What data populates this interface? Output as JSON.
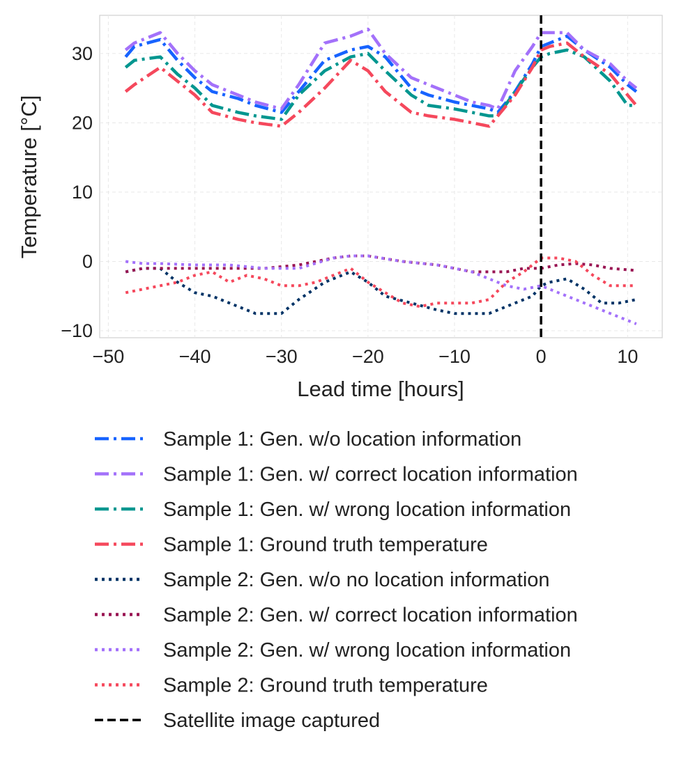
{
  "chart_data": {
    "type": "line",
    "xlabel": "Lead time [hours]",
    "ylabel": "Temperature [°C]",
    "xlim": [
      -51,
      14
    ],
    "ylim": [
      -11,
      35.5
    ],
    "xticks": [
      -50,
      -40,
      -30,
      -20,
      -10,
      0,
      10
    ],
    "xtick_labels": [
      "−50",
      "−40",
      "−30",
      "−20",
      "−10",
      "0",
      "10"
    ],
    "yticks": [
      -10,
      0,
      10,
      20,
      30
    ],
    "ytick_labels": [
      "−10",
      "0",
      "10",
      "20",
      "30"
    ],
    "grid": true,
    "legend_position": "below",
    "series": [
      {
        "name": "Sample 1: Gen. w/o location information",
        "color": "#1763ff",
        "style": "dashdot",
        "x": [
          -48,
          -47,
          -44,
          -42,
          -40,
          -38,
          -35,
          -33,
          -30,
          -28,
          -25,
          -22,
          -20,
          -18,
          -15,
          -13,
          -10,
          -8,
          -6,
          -5,
          -3,
          -1,
          0,
          1,
          3,
          5,
          8,
          10,
          11
        ],
        "y": [
          29.5,
          31,
          32,
          29,
          26.5,
          24.5,
          23.5,
          22.5,
          21.5,
          24.5,
          29,
          30.5,
          31,
          29.5,
          25,
          24,
          23,
          22.5,
          22,
          21.5,
          24.5,
          28.5,
          31,
          31.5,
          32.5,
          30.5,
          28,
          25.5,
          24.5
        ]
      },
      {
        "name": "Sample 1: Gen. w/ correct location information",
        "color": "#a371fa",
        "style": "dashdot",
        "x": [
          -48,
          -47,
          -44,
          -42,
          -40,
          -38,
          -35,
          -33,
          -30,
          -28,
          -25,
          -22,
          -20,
          -18,
          -15,
          -13,
          -10,
          -8,
          -6,
          -5,
          -3,
          -1,
          0,
          1,
          3,
          5,
          8,
          10,
          11
        ],
        "y": [
          30.5,
          31.5,
          33,
          30,
          27.5,
          25.5,
          24,
          23,
          22,
          25.5,
          31.5,
          32.5,
          33.5,
          30,
          26.5,
          25.5,
          24,
          23,
          22.5,
          22,
          27.5,
          31,
          33,
          33,
          33,
          30.5,
          28.5,
          26,
          25
        ]
      },
      {
        "name": "Sample 1: Gen. w/ wrong location information",
        "color": "#00968f",
        "style": "dashdot",
        "x": [
          -48,
          -47,
          -44,
          -42,
          -40,
          -38,
          -35,
          -33,
          -30,
          -28,
          -25,
          -22,
          -20,
          -18,
          -15,
          -13,
          -10,
          -8,
          -6,
          -5,
          -3,
          -1,
          0,
          1,
          3,
          5,
          8,
          10,
          11
        ],
        "y": [
          28,
          29,
          29.5,
          27,
          25,
          22.5,
          21.5,
          21,
          20.5,
          24,
          27.5,
          29.5,
          30,
          27.5,
          24,
          22.5,
          22,
          21.5,
          21,
          21,
          24.5,
          28,
          29.5,
          30,
          30.5,
          29.5,
          26,
          22.5,
          22.5
        ]
      },
      {
        "name": "Sample 1: Ground truth temperature",
        "color": "#f5485c",
        "style": "dashdot",
        "x": [
          -48,
          -47,
          -44,
          -42,
          -40,
          -38,
          -35,
          -33,
          -30,
          -28,
          -25,
          -22,
          -20,
          -18,
          -15,
          -13,
          -10,
          -8,
          -6,
          -5,
          -3,
          -1,
          0,
          1,
          3,
          5,
          8,
          10,
          11
        ],
        "y": [
          24.5,
          25.5,
          28,
          26,
          24,
          21.5,
          20.5,
          20,
          19.5,
          21.5,
          25,
          29,
          27.5,
          24.5,
          21.5,
          21,
          20.5,
          20,
          19.5,
          21,
          24,
          28,
          30.5,
          31,
          31.5,
          29.5,
          27,
          24,
          22.5
        ]
      },
      {
        "name": "Sample 2: Gen. w/o no location information",
        "color": "#003366",
        "style": "dotted",
        "x": [
          -48,
          -46,
          -44,
          -42,
          -40,
          -38,
          -35,
          -33,
          -30,
          -28,
          -25,
          -22,
          -20,
          -18,
          -15,
          -12,
          -10,
          -8,
          -6,
          -5,
          -3,
          -1,
          0,
          1,
          3,
          5,
          7,
          9,
          11
        ],
        "y": [
          -1.5,
          -1,
          -1,
          -3,
          -4.5,
          -5,
          -6.5,
          -7.5,
          -7.5,
          -5.5,
          -3,
          -1.5,
          -3,
          -5,
          -6,
          -7,
          -7.5,
          -7.5,
          -7.5,
          -7,
          -6,
          -5,
          -3.5,
          -3,
          -2.5,
          -4,
          -6,
          -6,
          -5.5
        ]
      },
      {
        "name": "Sample 2: Gen. w/ correct location information",
        "color": "#991452",
        "style": "dotted",
        "x": [
          -48,
          -46,
          -44,
          -40,
          -36,
          -32,
          -28,
          -24,
          -22,
          -20,
          -16,
          -12,
          -10,
          -8,
          -6,
          -4,
          -2,
          0,
          2,
          4,
          6,
          8,
          11
        ],
        "y": [
          -1.5,
          -1,
          -1,
          -1,
          -1,
          -1,
          -0.5,
          0.5,
          0.8,
          0.8,
          0,
          -0.5,
          -1,
          -1.5,
          -1.5,
          -1.5,
          -1,
          -1,
          -0.5,
          -0.3,
          -0.5,
          -1,
          -1.3
        ]
      },
      {
        "name": "Sample 2: Gen. w/ wrong location information",
        "color": "#a371fa",
        "style": "dotted",
        "x": [
          -48,
          -46,
          -44,
          -40,
          -36,
          -32,
          -28,
          -24,
          -22,
          -20,
          -16,
          -12,
          -10,
          -8,
          -6,
          -4,
          -2,
          0,
          2,
          4,
          6,
          8,
          11
        ],
        "y": [
          0,
          -0.3,
          -0.3,
          -0.5,
          -0.5,
          -1,
          -1,
          0.5,
          0.8,
          0.8,
          0,
          -0.5,
          -1,
          -1.5,
          -2.5,
          -3.5,
          -4,
          -3.5,
          -4.5,
          -5.5,
          -6.5,
          -7.5,
          -9
        ]
      },
      {
        "name": "Sample 2: Ground truth temperature",
        "color": "#f5485c",
        "style": "dotted",
        "x": [
          -48,
          -46,
          -44,
          -42,
          -40,
          -38,
          -36,
          -34,
          -32,
          -30,
          -28,
          -26,
          -24,
          -22,
          -20,
          -18,
          -16,
          -14,
          -12,
          -10,
          -8,
          -6,
          -4,
          -2,
          0,
          2,
          4,
          6,
          8,
          11
        ],
        "y": [
          -4.5,
          -4,
          -3.5,
          -3,
          -2,
          -1.5,
          -3,
          -2,
          -2.5,
          -3.5,
          -3.5,
          -3,
          -2,
          -1,
          -3,
          -4.5,
          -6,
          -6.5,
          -6,
          -6,
          -6,
          -5.5,
          -3,
          -1.5,
          0.5,
          0.5,
          0,
          -2,
          -3.5,
          -3.5
        ]
      }
    ],
    "vline": {
      "name": "Satellite image captured",
      "x": 0,
      "color": "#000000",
      "style": "dashed"
    }
  }
}
